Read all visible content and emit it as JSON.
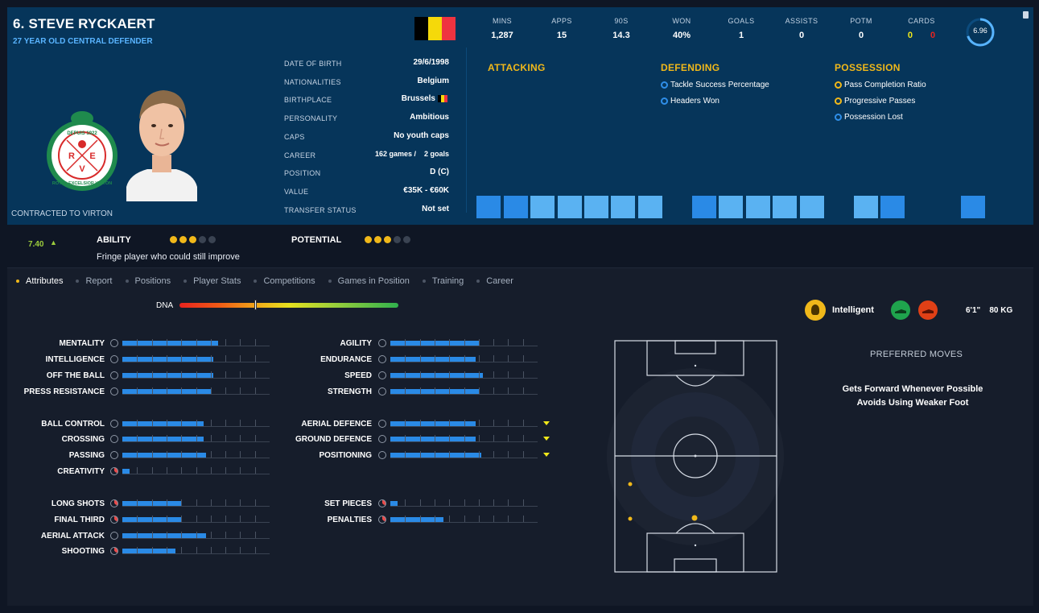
{
  "player": {
    "name": "6. STEVE RYCKAERT",
    "subtitle": "27 YEAR OLD CENTRAL DEFENDER",
    "contracted": "CONTRACTED TO VIRTON",
    "flag_colors": [
      "#000000",
      "#f5d90a",
      "#ef3340"
    ],
    "crest_letters": {
      "top": "DEPUIS 1922",
      "bottom": "ROYAL EXCELSIOR VIRTON",
      "r": "R",
      "e": "E",
      "v": "V"
    }
  },
  "info": [
    {
      "label": "DATE OF BIRTH",
      "value": "29/6/1998"
    },
    {
      "label": "NATIONALITIES",
      "value": "Belgium"
    },
    {
      "label": "BIRTHPLACE",
      "value": "Brussels"
    },
    {
      "label": "PERSONALITY",
      "value": "Ambitious"
    },
    {
      "label": "CAPS",
      "value": "No youth caps"
    },
    {
      "label": "CAREER",
      "value": "162 games /    2 goals"
    },
    {
      "label": "POSITION",
      "value": "D (C)"
    },
    {
      "label": "VALUE",
      "value": "€35K - €60K"
    },
    {
      "label": "TRANSFER STATUS",
      "value": "Not set"
    }
  ],
  "stats": [
    {
      "label": "MINS",
      "value": "1,287"
    },
    {
      "label": "APPS",
      "value": "15"
    },
    {
      "label": "90S",
      "value": "14.3"
    },
    {
      "label": "WON",
      "value": "40%"
    },
    {
      "label": "GOALS",
      "value": "1"
    },
    {
      "label": "ASSISTS",
      "value": "0"
    },
    {
      "label": "POTM",
      "value": "0"
    }
  ],
  "cards": {
    "label": "CARDS",
    "yellow": "0",
    "red": "0",
    "yellow_color": "#f0e81a",
    "red_color": "#e8231f"
  },
  "avg_rating": {
    "value": "6.96",
    "fill": 0.7
  },
  "sections": {
    "attacking": {
      "title": "ATTACKING",
      "items": []
    },
    "defending": {
      "title": "DEFENDING",
      "items": [
        "Tackle Success Percentage",
        "Headers Won"
      ]
    },
    "possession": {
      "title": "POSSESSION",
      "items": [
        "Pass Completion Ratio",
        "Progressive Passes",
        "Possession Lost"
      ]
    }
  },
  "ability": {
    "current_rating": "7.40",
    "ability_label": "ABILITY",
    "ability_stars": 3,
    "potential_label": "POTENTIAL",
    "potential_stars": 3,
    "description": "Fringe player who could still improve"
  },
  "tabs": [
    "Attributes",
    "Report",
    "Positions",
    "Player Stats",
    "Competitions",
    "Games in Position",
    "Training",
    "Career"
  ],
  "active_tab": 0,
  "dna": {
    "label": "DNA",
    "marker": 0.35
  },
  "attributes_left": [
    {
      "name": "MENTALITY",
      "value": 0.65
    },
    {
      "name": "INTELLIGENCE",
      "value": 0.62
    },
    {
      "name": "OFF THE BALL",
      "value": 0.62
    },
    {
      "name": "PRESS RESISTANCE",
      "value": 0.6
    },
    {
      "name": "BALL CONTROL",
      "value": 0.55
    },
    {
      "name": "CROSSING",
      "value": 0.55
    },
    {
      "name": "PASSING",
      "value": 0.57
    },
    {
      "name": "CREATIVITY",
      "value": 0.05
    },
    {
      "name": "LONG SHOTS",
      "value": 0.4
    },
    {
      "name": "FINAL THIRD",
      "value": 0.4
    },
    {
      "name": "AERIAL ATTACK",
      "value": 0.57
    },
    {
      "name": "SHOOTING",
      "value": 0.36
    }
  ],
  "attributes_right": [
    {
      "name": "AGILITY",
      "value": 0.6,
      "flag": false
    },
    {
      "name": "ENDURANCE",
      "value": 0.58,
      "flag": false
    },
    {
      "name": "SPEED",
      "value": 0.63,
      "flag": false
    },
    {
      "name": "STRENGTH",
      "value": 0.6,
      "flag": false
    },
    {
      "name": "AERIAL DEFENCE",
      "value": 0.58,
      "flag": true
    },
    {
      "name": "GROUND DEFENCE",
      "value": 0.58,
      "flag": true
    },
    {
      "name": "POSITIONING",
      "value": 0.62,
      "flag": true
    },
    {
      "name": "SET PIECES",
      "value": 0.05,
      "flag": false
    },
    {
      "name": "PENALTIES",
      "value": 0.36,
      "flag": false
    }
  ],
  "trait": "Intelligent",
  "height_weight": "6'1\"    80 KG",
  "preferred_moves": {
    "title": "PREFERRED MOVES",
    "items": [
      "Gets Forward Whenever Possible",
      "Avoids Using Weaker Foot"
    ]
  },
  "colors": {
    "accent_blue": "#2a8ae6",
    "gold": "#f0b81a",
    "header_bg": "#06355a"
  }
}
